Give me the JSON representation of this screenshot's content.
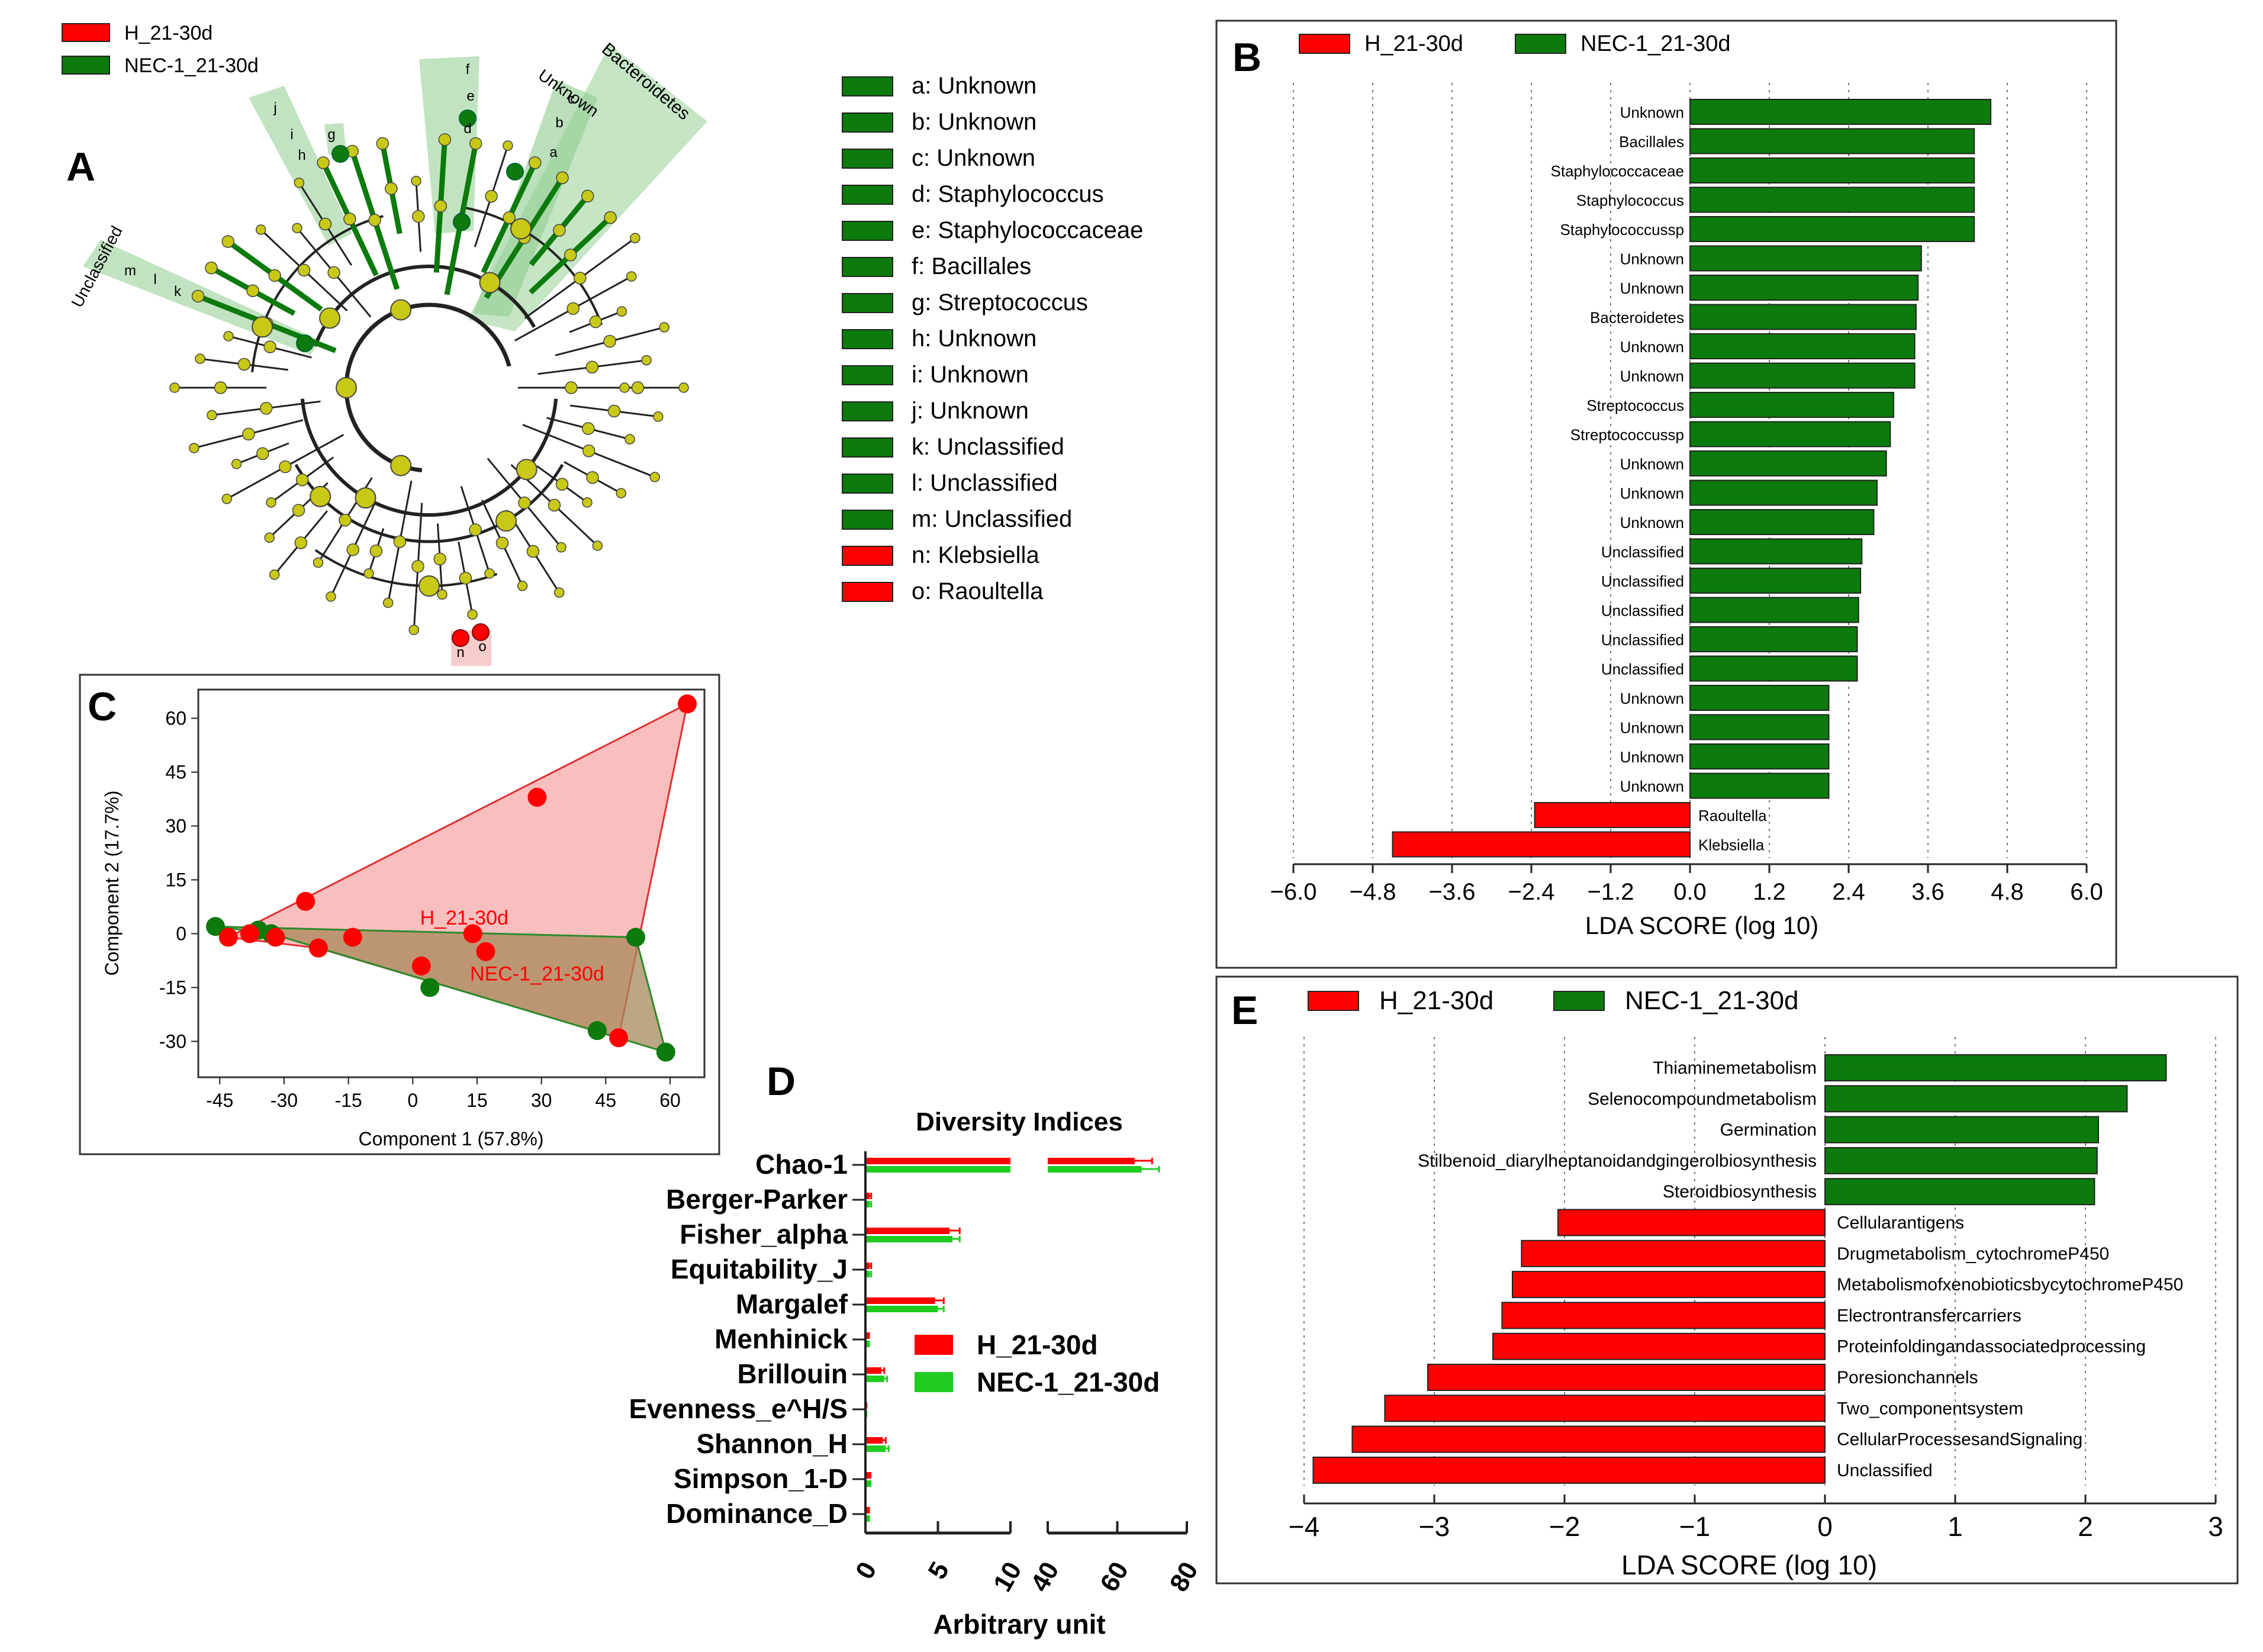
{
  "colors": {
    "red": "#ff0000",
    "green": "#0c7a0c",
    "bright_green": "#1fcc1f",
    "node": "#c8c816",
    "clade_fill": "#9fd49f",
    "poly_red": "#f7a8a8",
    "poly_overlap": "#a7885a"
  },
  "panel_a": {
    "letter": "A",
    "legend": [
      {
        "label": "H_21-30d",
        "color": "#ff0000"
      },
      {
        "label": "NEC-1_21-30d",
        "color": "#0c7a0c"
      }
    ],
    "clade_labels": [
      "Unknown",
      "Bacteroidetes",
      "Unclassified",
      "a",
      "b",
      "c",
      "d",
      "e",
      "f",
      "g",
      "h",
      "i",
      "j",
      "k",
      "l",
      "m",
      "n",
      "o"
    ],
    "key": [
      {
        "text": "a: Unknown",
        "color": "#0c7a0c"
      },
      {
        "text": "b: Unknown",
        "color": "#0c7a0c"
      },
      {
        "text": "c: Unknown",
        "color": "#0c7a0c"
      },
      {
        "text": "d: Staphylococcus",
        "color": "#0c7a0c"
      },
      {
        "text": "e: Staphylococcaceae",
        "color": "#0c7a0c"
      },
      {
        "text": "f: Bacillales",
        "color": "#0c7a0c"
      },
      {
        "text": "g: Streptococcus",
        "color": "#0c7a0c"
      },
      {
        "text": "h: Unknown",
        "color": "#0c7a0c"
      },
      {
        "text": "i: Unknown",
        "color": "#0c7a0c"
      },
      {
        "text": "j: Unknown",
        "color": "#0c7a0c"
      },
      {
        "text": "k: Unclassified",
        "color": "#0c7a0c"
      },
      {
        "text": "l: Unclassified",
        "color": "#0c7a0c"
      },
      {
        "text": "m: Unclassified",
        "color": "#0c7a0c"
      },
      {
        "text": "n: Klebsiella",
        "color": "#ff0000"
      },
      {
        "text": "o: Raoultella",
        "color": "#ff0000"
      }
    ]
  },
  "chart_data": [
    {
      "id": "B",
      "type": "bar",
      "orientation": "horizontal",
      "letter": "B",
      "legend": [
        "H_21-30d",
        "NEC-1_21-30d"
      ],
      "xlabel": "LDA SCORE (log 10)",
      "xlim": [
        -6.0,
        6.0
      ],
      "ticks": [
        "−6.0",
        "−4.8",
        "−3.6",
        "−2.4",
        "−1.2",
        "0.0",
        "1.2",
        "2.4",
        "3.6",
        "4.8",
        "6.0"
      ],
      "tick_values": [
        -6.0,
        -4.8,
        -3.6,
        -2.4,
        -1.2,
        0.0,
        1.2,
        2.4,
        3.6,
        4.8,
        6.0
      ],
      "categories": [
        "Unknown",
        "Bacillales",
        "Staphylococcaceae",
        "Staphylococcus",
        "Staphylococcussp",
        "Unknown",
        "Unknown",
        "Bacteroidetes",
        "Unknown",
        "Unknown",
        "Streptococcus",
        "Streptococcussp",
        "Unknown",
        "Unknown",
        "Unknown",
        "Unclassified",
        "Unclassified",
        "Unclassified",
        "Unclassified",
        "Unclassified",
        "Unknown",
        "Unknown",
        "Unknown",
        "Unknown",
        "Raoultella",
        "Klebsiella"
      ],
      "values": [
        4.55,
        4.3,
        4.3,
        4.3,
        4.3,
        3.5,
        3.45,
        3.42,
        3.4,
        3.4,
        3.08,
        3.03,
        2.97,
        2.83,
        2.78,
        2.6,
        2.58,
        2.55,
        2.53,
        2.53,
        2.1,
        2.1,
        2.1,
        2.1,
        -2.35,
        -4.5
      ]
    },
    {
      "id": "C",
      "type": "scatter",
      "letter": "C",
      "xlabel": "Component 1 (57.8%)",
      "ylabel": "Component 2 (17.7%)",
      "xlim": [
        -50,
        68
      ],
      "ylim": [
        -40,
        68
      ],
      "ticks_x": [
        "-45",
        "-30",
        "-15",
        "0",
        "15",
        "30",
        "45",
        "60"
      ],
      "tick_values_x": [
        -45,
        -30,
        -15,
        0,
        15,
        30,
        45,
        60
      ],
      "ticks_y": [
        "60",
        "45",
        "30",
        "15",
        "0",
        "-15",
        "-30"
      ],
      "tick_values_y": [
        60,
        45,
        30,
        15,
        0,
        -15,
        -30
      ],
      "series": [
        {
          "name": "H_21-30d",
          "color": "#ff0000",
          "points": [
            [
              -43,
              -1
            ],
            [
              -38,
              0
            ],
            [
              -32,
              -1
            ],
            [
              -25,
              9
            ],
            [
              -22,
              -4
            ],
            [
              -14,
              -1
            ],
            [
              2,
              -9
            ],
            [
              14,
              0
            ],
            [
              17,
              -5
            ],
            [
              29,
              38
            ],
            [
              48,
              -29
            ],
            [
              64,
              64
            ]
          ],
          "hull": [
            [
              -43,
              -1
            ],
            [
              64,
              64
            ],
            [
              48,
              -29
            ],
            [
              -22,
              -4
            ]
          ]
        },
        {
          "name": "NEC-1_21-30d",
          "color": "#0c7a0c",
          "points": [
            [
              -46,
              2
            ],
            [
              -36,
              1
            ],
            [
              -33,
              0
            ],
            [
              4,
              -15
            ],
            [
              52,
              -1
            ],
            [
              43,
              -27
            ],
            [
              59,
              -33
            ]
          ],
          "hull": [
            [
              -46,
              2
            ],
            [
              52,
              -1
            ],
            [
              59,
              -33
            ],
            [
              -33,
              0
            ]
          ]
        }
      ],
      "annotations": [
        "H_21-30d",
        "NEC-1_21-30d"
      ]
    },
    {
      "id": "D",
      "type": "bar",
      "orientation": "horizontal",
      "letter": "D",
      "title": "Diversity Indices",
      "xlabel": "Arbitrary unit",
      "axis_break": true,
      "xlim_left": [
        0,
        10
      ],
      "xlim_right": [
        40,
        80
      ],
      "ticks_left": [
        "0",
        "5",
        "10"
      ],
      "tick_values_left": [
        0,
        5,
        10
      ],
      "ticks_right": [
        "40",
        "60",
        "80"
      ],
      "tick_values_right": [
        40,
        60,
        80
      ],
      "categories": [
        "Chao-1",
        "Berger-Parker",
        "Fisher_alpha",
        "Equitability_J",
        "Margalef",
        "Menhinick",
        "Brillouin",
        "Evenness_e^H/S",
        "Shannon_H",
        "Simpson_1-D",
        "Dominance_D"
      ],
      "series": [
        {
          "name": "H_21-30d",
          "color": "#ff0000",
          "values": [
            65,
            0.3,
            5.8,
            0.3,
            4.8,
            0.2,
            1.1,
            0.05,
            1.2,
            0.3,
            0.2
          ]
        },
        {
          "name": "NEC-1_21-30d",
          "color": "#1fcc1f",
          "values": [
            67,
            0.3,
            6.0,
            0.3,
            5.0,
            0.2,
            1.3,
            0.05,
            1.4,
            0.3,
            0.2
          ]
        }
      ],
      "errors": [
        {
          "name": "H_21-30d",
          "values": [
            5,
            0.1,
            0.7,
            0.1,
            0.6,
            0.05,
            0.2,
            0.02,
            0.2,
            0.05,
            0.05
          ]
        },
        {
          "name": "NEC-1_21-30d",
          "values": [
            5,
            0.1,
            0.5,
            0.1,
            0.4,
            0.05,
            0.2,
            0.02,
            0.2,
            0.05,
            0.05
          ]
        }
      ]
    },
    {
      "id": "E",
      "type": "bar",
      "orientation": "horizontal",
      "letter": "E",
      "legend": [
        "H_21-30d",
        "NEC-1_21-30d"
      ],
      "xlabel": "LDA SCORE (log 10)",
      "xlim": [
        -4.1,
        3.2
      ],
      "ticks": [
        "−4",
        "−3",
        "−2",
        "−1",
        "0",
        "1",
        "2",
        "3"
      ],
      "tick_values": [
        -4,
        -3,
        -2,
        -1,
        0,
        1,
        2,
        3
      ],
      "categories": [
        "Thiaminemetabolism",
        "Selenocompoundmetabolism",
        "Germination",
        "Stilbenoid_diarylheptanoidandgingerolbiosynthesis",
        "Steroidbiosynthesis",
        "Cellularantigens",
        "Drugmetabolism_cytochromeP450",
        "MetabolismofxenobioticsbycytochromeP450",
        "Electrontransfercarriers",
        "Proteinfoldingandassociatedprocessing",
        "Poresionchannels",
        "Two_componentsystem",
        "CellularProcessesandSignaling",
        "Unclassified"
      ],
      "values": [
        2.62,
        2.32,
        2.1,
        2.09,
        2.07,
        -2.05,
        -2.33,
        -2.4,
        -2.48,
        -2.55,
        -3.05,
        -3.38,
        -3.63,
        -3.93
      ]
    }
  ]
}
